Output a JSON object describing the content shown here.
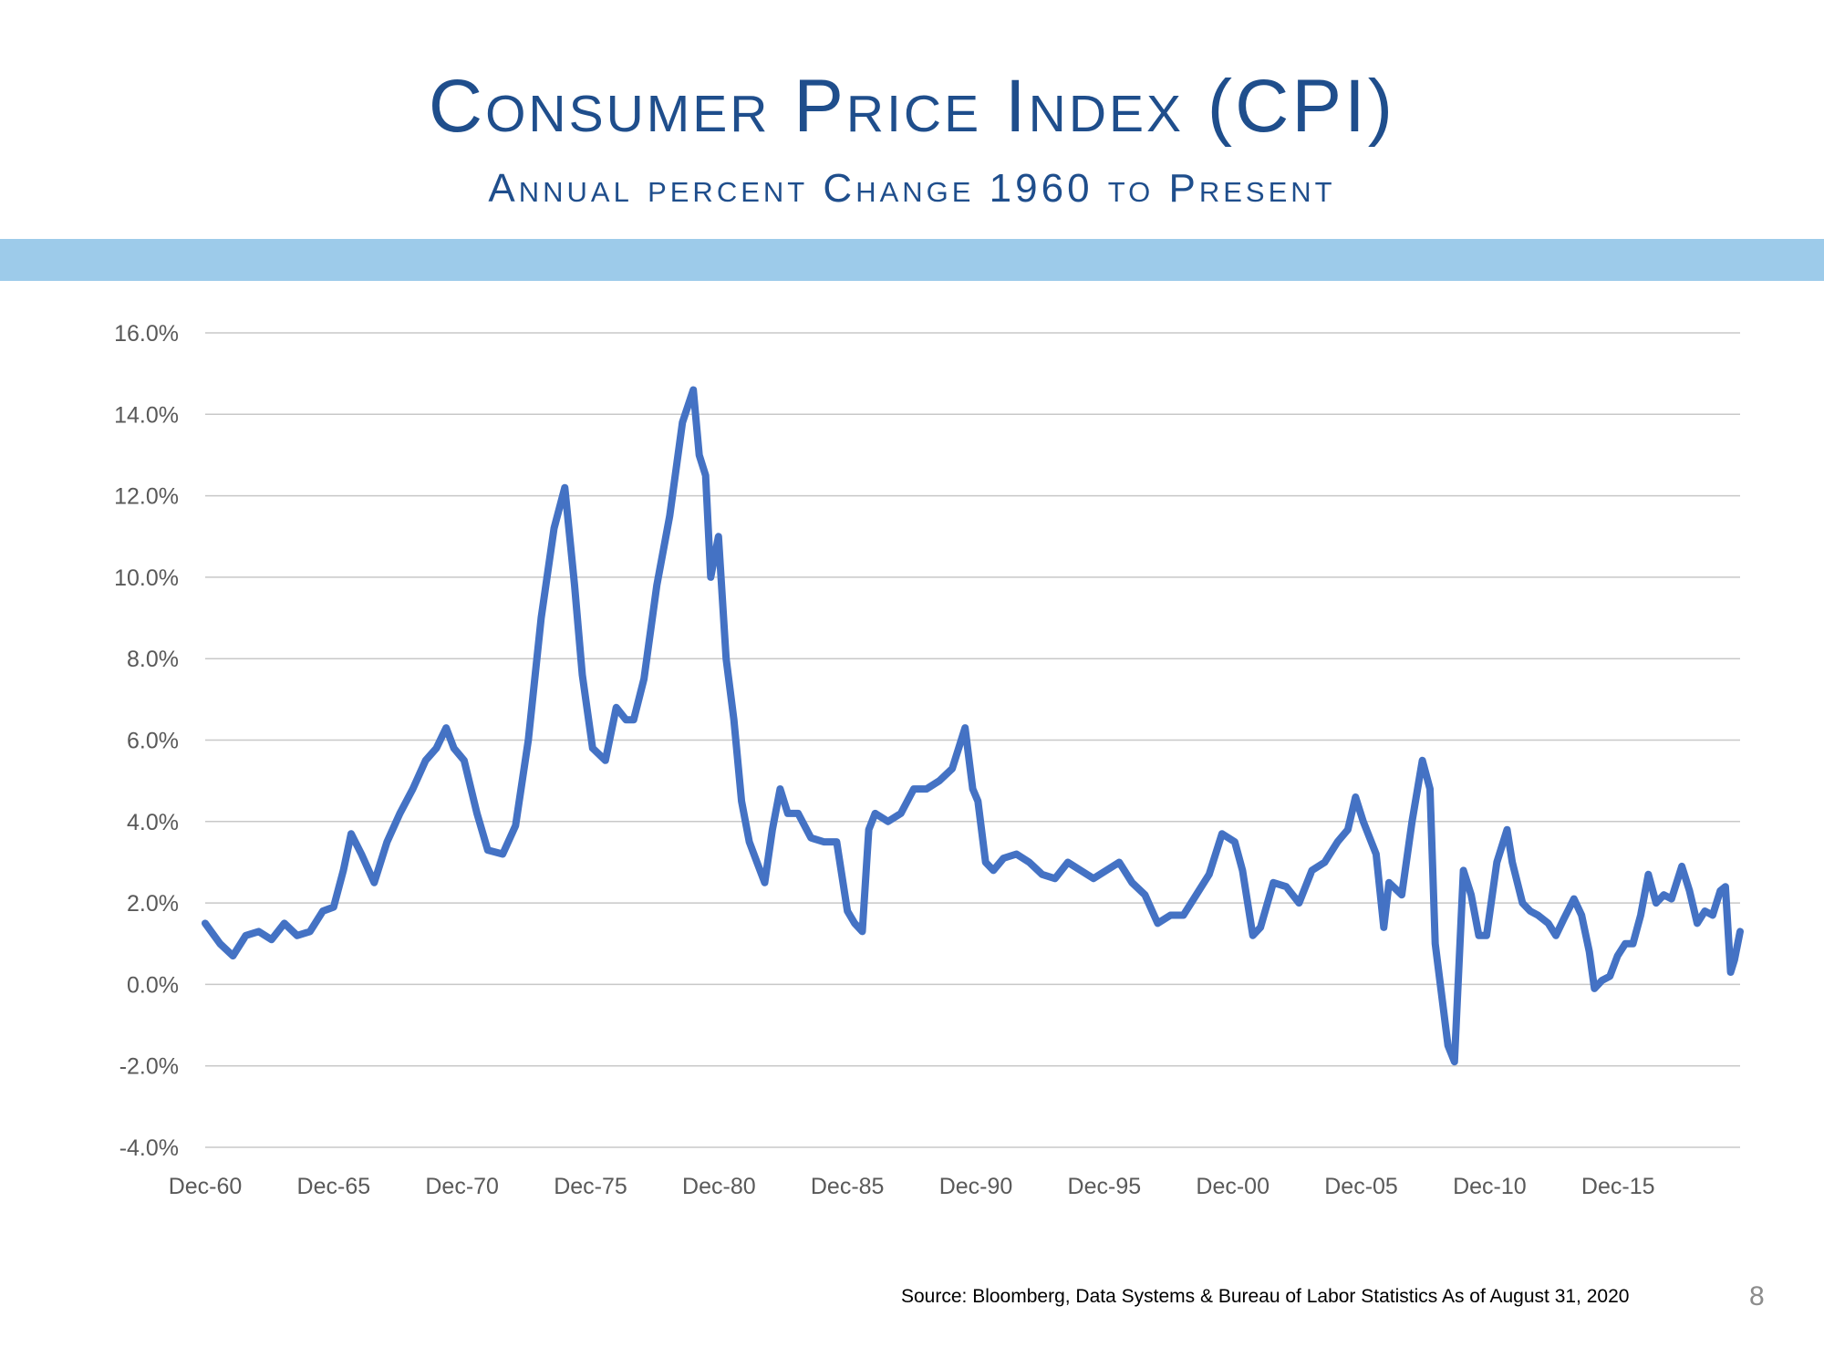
{
  "page": {
    "title": "Consumer Price Index (CPI)",
    "subtitle": "Annual percent Change 1960 to Present",
    "source": "Source:  Bloomberg, Data Systems & Bureau of Labor Statistics As of August 31, 2020",
    "page_number": "8",
    "band_color": "#9dcbea",
    "title_color": "#1f4e8c"
  },
  "chart_data": {
    "type": "line",
    "title": "Consumer Price Index (CPI)",
    "subtitle": "Annual percent Change 1960 to Present",
    "x_ticks": [
      "Dec-60",
      "Dec-65",
      "Dec-70",
      "Dec-75",
      "Dec-80",
      "Dec-85",
      "Dec-90",
      "Dec-95",
      "Dec-00",
      "Dec-05",
      "Dec-10",
      "Dec-15"
    ],
    "y_ticks": [
      "16.0%",
      "14.0%",
      "12.0%",
      "10.0%",
      "8.0%",
      "6.0%",
      "4.0%",
      "2.0%",
      "0.0%",
      "-2.0%",
      "-4.0%"
    ],
    "xlim": [
      1960.92,
      2020.67
    ],
    "ylim": [
      -4,
      16
    ],
    "grid": "horizontal",
    "line_color": "#4472c4",
    "series": [
      {
        "x": [
          1960.92,
          1961.5,
          1962.0,
          1962.5,
          1963.0,
          1963.5,
          1964.0,
          1964.5,
          1965.0,
          1965.5,
          1965.92,
          1966.3,
          1966.6,
          1967.0,
          1967.5,
          1968.0,
          1968.5,
          1969.0,
          1969.5,
          1969.92,
          1970.3,
          1970.6,
          1971.0,
          1971.5,
          1971.92,
          1972.5,
          1973.0,
          1973.5,
          1974.0,
          1974.5,
          1974.92,
          1975.3,
          1975.6,
          1976.0,
          1976.5,
          1976.92,
          1977.3,
          1977.6,
          1978.0,
          1978.5,
          1979.0,
          1979.5,
          1979.92,
          1980.15,
          1980.4,
          1980.6,
          1980.9,
          1981.2,
          1981.5,
          1981.8,
          1982.1,
          1982.4,
          1982.7,
          1983.0,
          1983.3,
          1983.6,
          1984.0,
          1984.5,
          1985.0,
          1985.5,
          1985.92,
          1986.2,
          1986.5,
          1986.75,
          1987.0,
          1987.5,
          1988.0,
          1988.5,
          1989.0,
          1989.5,
          1990.0,
          1990.5,
          1990.8,
          1991.0,
          1991.3,
          1991.6,
          1992.0,
          1992.5,
          1993.0,
          1993.5,
          1994.0,
          1994.5,
          1995.0,
          1995.5,
          1996.0,
          1996.5,
          1997.0,
          1997.5,
          1998.0,
          1998.5,
          1999.0,
          1999.5,
          2000.0,
          2000.5,
          2001.0,
          2001.3,
          2001.7,
          2002.0,
          2002.5,
          2003.0,
          2003.5,
          2004.0,
          2004.5,
          2005.0,
          2005.4,
          2005.7,
          2006.0,
          2006.5,
          2006.8,
          2007.0,
          2007.5,
          2007.9,
          2008.3,
          2008.6,
          2008.8,
          2009.0,
          2009.3,
          2009.55,
          2009.9,
          2010.2,
          2010.5,
          2010.8,
          2011.2,
          2011.6,
          2011.8,
          2012.2,
          2012.5,
          2012.8,
          2013.2,
          2013.5,
          2013.8,
          2014.2,
          2014.5,
          2014.8,
          2015.0,
          2015.3,
          2015.6,
          2015.9,
          2016.2,
          2016.5,
          2016.8,
          2017.1,
          2017.4,
          2017.7,
          2018.0,
          2018.4,
          2018.7,
          2019.0,
          2019.3,
          2019.6,
          2019.9,
          2020.1,
          2020.3,
          2020.45,
          2020.67
        ],
        "y": [
          1.5,
          1.0,
          0.7,
          1.2,
          1.3,
          1.1,
          1.5,
          1.2,
          1.3,
          1.8,
          1.9,
          2.8,
          3.7,
          3.2,
          2.5,
          3.5,
          4.2,
          4.8,
          5.5,
          5.8,
          6.3,
          5.8,
          5.5,
          4.2,
          3.3,
          3.2,
          3.9,
          6.0,
          9.0,
          11.2,
          12.2,
          9.8,
          7.6,
          5.8,
          5.5,
          6.8,
          6.5,
          6.5,
          7.5,
          9.8,
          11.5,
          13.8,
          14.6,
          13.0,
          12.5,
          10.0,
          11.0,
          8.0,
          6.5,
          4.5,
          3.5,
          3.0,
          2.5,
          3.8,
          4.8,
          4.2,
          4.2,
          3.6,
          3.5,
          3.5,
          1.8,
          1.5,
          1.3,
          3.8,
          4.2,
          4.0,
          4.2,
          4.8,
          4.8,
          5.0,
          5.3,
          6.3,
          4.8,
          4.5,
          3.0,
          2.8,
          3.1,
          3.2,
          3.0,
          2.7,
          2.6,
          3.0,
          2.8,
          2.6,
          2.8,
          3.0,
          2.5,
          2.2,
          1.5,
          1.7,
          1.7,
          2.2,
          2.7,
          3.7,
          3.5,
          2.8,
          1.2,
          1.4,
          2.5,
          2.4,
          2.0,
          2.8,
          3.0,
          3.5,
          3.8,
          4.6,
          4.0,
          3.2,
          1.4,
          2.5,
          2.2,
          4.0,
          5.5,
          4.8,
          1.0,
          0.0,
          -1.5,
          -1.9,
          2.8,
          2.2,
          1.2,
          1.2,
          3.0,
          3.8,
          3.0,
          2.0,
          1.8,
          1.7,
          1.5,
          1.2,
          1.6,
          2.1,
          1.7,
          0.8,
          -0.1,
          0.1,
          0.2,
          0.7,
          1.0,
          1.0,
          1.7,
          2.7,
          2.0,
          2.2,
          2.1,
          2.9,
          2.3,
          1.5,
          1.8,
          1.7,
          2.3,
          2.4,
          0.3,
          0.6,
          1.3
        ]
      }
    ]
  }
}
